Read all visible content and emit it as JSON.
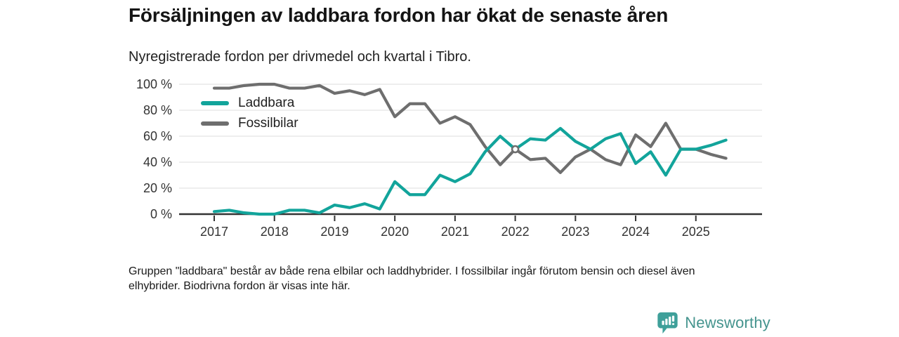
{
  "header": {
    "title": "Försäljningen av laddbara fordon har ökat de senaste åren",
    "subtitle": "Nyregistrerade fordon per drivmedel och kvartal i Tibro."
  },
  "chart_data": {
    "type": "line",
    "x_unit": "quarter",
    "x": [
      "2017 Q1",
      "2017 Q2",
      "2017 Q3",
      "2017 Q4",
      "2018 Q1",
      "2018 Q2",
      "2018 Q3",
      "2018 Q4",
      "2019 Q1",
      "2019 Q2",
      "2019 Q3",
      "2019 Q4",
      "2020 Q1",
      "2020 Q2",
      "2020 Q3",
      "2020 Q4",
      "2021 Q1",
      "2021 Q2",
      "2021 Q3",
      "2021 Q4",
      "2022 Q1",
      "2022 Q2",
      "2022 Q3",
      "2022 Q4",
      "2023 Q1",
      "2023 Q2",
      "2023 Q3",
      "2023 Q4",
      "2024 Q1",
      "2024 Q2",
      "2024 Q3",
      "2024 Q4",
      "2025 Q1",
      "2025 Q2",
      "2025 Q3"
    ],
    "year_ticks": [
      "2017",
      "2018",
      "2019",
      "2020",
      "2021",
      "2022",
      "2023",
      "2024",
      "2025"
    ],
    "yticks": [
      0,
      20,
      40,
      60,
      80,
      100
    ],
    "ytick_labels": [
      "0 %",
      "20 %",
      "40 %",
      "60 %",
      "80 %",
      "100 %"
    ],
    "ylim": [
      0,
      100
    ],
    "ylabel_format": "percent",
    "grid": true,
    "legend_position": "top-left-inside",
    "series": [
      {
        "name": "Laddbara",
        "color": "#12a49b",
        "values": [
          2,
          3,
          1,
          0,
          0,
          3,
          3,
          1,
          7,
          5,
          8,
          4,
          25,
          15,
          15,
          30,
          25,
          31,
          48,
          60,
          50,
          58,
          57,
          66,
          56,
          50,
          58,
          62,
          39,
          48,
          30,
          50,
          50,
          53,
          57
        ]
      },
      {
        "name": "Fossilbilar",
        "color": "#6e6e6e",
        "values": [
          97,
          97,
          99,
          100,
          100,
          97,
          97,
          99,
          93,
          95,
          92,
          96,
          75,
          85,
          85,
          70,
          75,
          69,
          52,
          38,
          50,
          42,
          43,
          32,
          44,
          50,
          42,
          38,
          61,
          52,
          70,
          50,
          50,
          46,
          43
        ]
      }
    ],
    "crossing_marker": {
      "x": "2022 Q1",
      "value": 50
    }
  },
  "footer": {
    "note_lines": [
      "Gruppen \"laddbara\" består av både rena elbilar och laddhybrider. I fossilbilar ingår förutom bensin och diesel även",
      "elhybrider. Biodrivna fordon är visas inte här."
    ]
  },
  "branding": {
    "logo_text": "Newsworthy",
    "logo_color": "#45948e",
    "icon_color": "#3fa09a",
    "icon": "bar-chart-speech-bubble"
  }
}
